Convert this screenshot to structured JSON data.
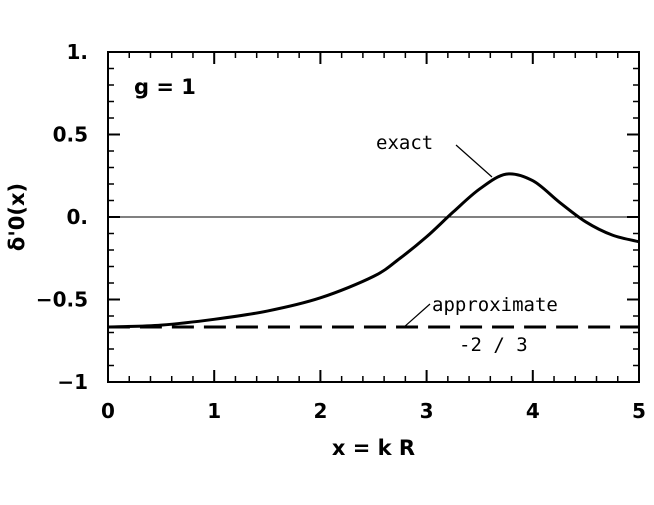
{
  "chart_data": {
    "type": "line",
    "xlabel": "x = k R",
    "ylabel": "δ'0(x)",
    "xlim": [
      0,
      5
    ],
    "ylim": [
      -1,
      1
    ],
    "x_ticks": [
      0,
      1,
      2,
      3,
      4,
      5
    ],
    "x_tick_labels": [
      "0",
      "1",
      "2",
      "3",
      "4",
      "5"
    ],
    "y_ticks": [
      -1,
      -0.5,
      0,
      0.5,
      1
    ],
    "y_tick_labels": [
      "−1",
      "−0.5",
      "0.",
      "0.5",
      "1."
    ],
    "parameter_label": "g = 1",
    "grid": false,
    "reference_line": {
      "y": 0
    },
    "series": [
      {
        "name": "exact",
        "style": "solid",
        "x": [
          0,
          0.5,
          1.0,
          1.5,
          2.0,
          2.5,
          2.75,
          3.0,
          3.25,
          3.5,
          3.75,
          4.0,
          4.25,
          4.5,
          4.75,
          5.0
        ],
        "y": [
          -0.667,
          -0.655,
          -0.62,
          -0.57,
          -0.49,
          -0.36,
          -0.25,
          -0.12,
          0.03,
          0.17,
          0.26,
          0.22,
          0.09,
          -0.03,
          -0.11,
          -0.15
        ]
      },
      {
        "name": "approximate",
        "style": "dashed",
        "x": [
          0,
          5
        ],
        "y": [
          -0.667,
          -0.667
        ]
      }
    ],
    "annotations": [
      {
        "text": "exact",
        "series": "exact",
        "at_x": 3.6
      },
      {
        "text": "approximate",
        "series": "approximate",
        "at_x": 3.0
      },
      {
        "text": "-2 / 3",
        "series": "approximate"
      }
    ]
  }
}
